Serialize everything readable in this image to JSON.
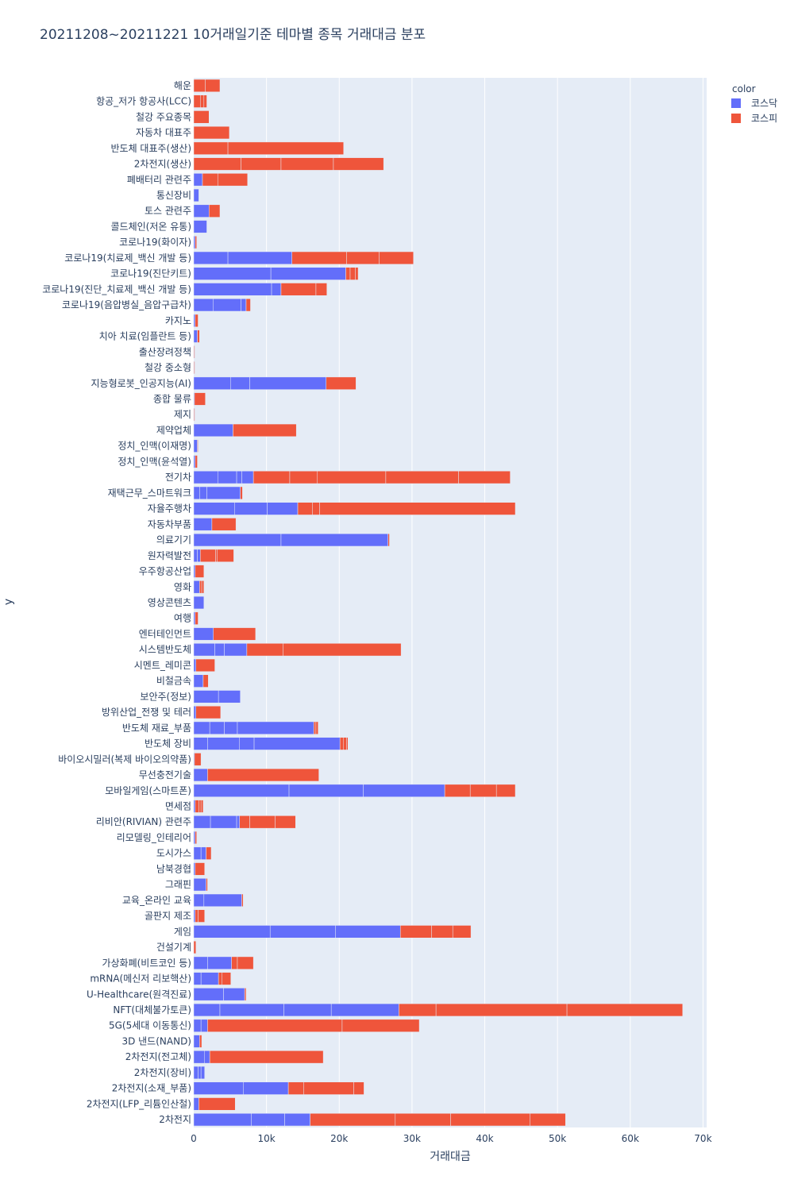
{
  "chart_data": {
    "type": "bar",
    "orientation": "horizontal",
    "barmode": "stack",
    "title": "20211208~20211221 10거래일기준 테마별 종목 거래대금 분포",
    "xlabel": "거래대금",
    "ylabel": "y",
    "xlim": [
      0,
      70500
    ],
    "xticks": [
      0,
      10000,
      20000,
      30000,
      40000,
      50000,
      60000,
      70000
    ],
    "xtick_labels": [
      "0",
      "10k",
      "20k",
      "30k",
      "40k",
      "50k",
      "60k",
      "70k"
    ],
    "grid": true,
    "legend": {
      "title": "color",
      "position": "top-right"
    },
    "categories": [
      "해운",
      "항공_저가 항공사(LCC)",
      "철강 주요종목",
      "자동차 대표주",
      "반도체 대표주(생산)",
      "2차전지(생산)",
      "폐배터리 관련주",
      "통신장비",
      "토스 관련주",
      "콜드체인(저온 유통)",
      "코로나19(화이자)",
      "코로나19(치료제_백신 개발 등)",
      "코로나19(진단키트)",
      "코로나19(진단_치료제_백신 개발 등)",
      "코로나19(음압병실_음압구급차)",
      "카지노",
      "치아 치료(임플란트 등)",
      "출산장려정책",
      "철강 중소형",
      "지능형로봇_인공지능(AI)",
      "종합 물류",
      "제지",
      "제약업체",
      "정치_인맥(이재명)",
      "정치_인맥(윤석열)",
      "전기차",
      "재택근무_스마트워크",
      "자율주행차",
      "자동차부품",
      "의료기기",
      "원자력발전",
      "우주항공산업",
      "영화",
      "영상콘텐츠",
      "여행",
      "엔터테인먼트",
      "시스템반도체",
      "시멘트_레미콘",
      "비철금속",
      "보안주(정보)",
      "방위산업_전쟁 및 테러",
      "반도체 재료_부품",
      "반도체 장비",
      "바이오시밀러(복제 바이오의약품)",
      "무선충전기술",
      "모바일게임(스마트폰)",
      "면세점",
      "리비안(RIVIAN) 관련주",
      "리모델링_인테리어",
      "도시가스",
      "남북경협",
      "그래핀",
      "교육_온라인 교육",
      "골판지 제조",
      "게임",
      "건설기계",
      "가상화폐(비트코인 등)",
      "mRNA(메신저 리보핵산)",
      "U-Healthcare(원격진료)",
      "NFT(대체불가토큰)",
      "5G(5세대 이동통신)",
      "3D 낸드(NAND)",
      "2차전지(전고체)",
      "2차전지(장비)",
      "2차전지(소재_부품)",
      "2차전지(LFP_리튬인산철)",
      "2차전지"
    ],
    "series": [
      {
        "name": "코스닥",
        "color": "#636efa",
        "values": [
          0,
          0,
          0,
          0,
          0,
          0,
          1200,
          700,
          2100,
          1800,
          200,
          13500,
          20900,
          12000,
          7200,
          200,
          500,
          50,
          50,
          18200,
          100,
          50,
          5400,
          500,
          200,
          8200,
          6400,
          14300,
          2500,
          26700,
          900,
          200,
          800,
          1400,
          200,
          2700,
          7300,
          300,
          1300,
          6400,
          300,
          16500,
          20100,
          100,
          1900,
          34500,
          200,
          6300,
          200,
          1700,
          200,
          1700,
          6600,
          200,
          28400,
          0,
          5200,
          3400,
          7000,
          28200,
          1900,
          800,
          2200,
          1500,
          13000,
          700,
          16000
        ],
        "segments": [
          [],
          [],
          [],
          [],
          [],
          [],
          [
            1200
          ],
          [
            700
          ],
          [
            2100
          ],
          [
            1800
          ],
          [
            200
          ],
          [
            4700,
            8800
          ],
          [
            10600,
            10300
          ],
          [
            10700,
            1300
          ],
          [
            2700,
            3800,
            700
          ],
          [
            200
          ],
          [
            500
          ],
          [
            50
          ],
          [
            50
          ],
          [
            5100,
            2600,
            10500
          ],
          [
            100
          ],
          [
            50
          ],
          [
            5400
          ],
          [
            500
          ],
          [
            200
          ],
          [
            3300,
            2600,
            700,
            1600
          ],
          [
            800,
            1000,
            4600
          ],
          [
            5600,
            4500,
            4200
          ],
          [
            2500
          ],
          [
            12000,
            14700
          ],
          [
            500,
            400
          ],
          [
            200
          ],
          [
            800
          ],
          [
            1400
          ],
          [
            200
          ],
          [
            2700
          ],
          [
            2900,
            1300,
            3100
          ],
          [
            300
          ],
          [
            1300
          ],
          [
            3400,
            3000
          ],
          [
            300
          ],
          [
            2200,
            2000,
            1800,
            10500
          ],
          [
            1900,
            4400,
            2000,
            11800
          ],
          [
            100
          ],
          [
            1900
          ],
          [
            13100,
            10200,
            11200
          ],
          [
            200
          ],
          [
            2300,
            3600,
            400
          ],
          [
            200
          ],
          [
            1000,
            700
          ],
          [
            200
          ],
          [
            1700
          ],
          [
            1400,
            5200
          ],
          [
            200
          ],
          [
            10500,
            9000,
            8900
          ],
          [
            0
          ],
          [
            1900,
            3300
          ],
          [
            1000,
            2400
          ],
          [
            4100,
            2900
          ],
          [
            3600,
            8800,
            6500,
            9300
          ],
          [
            1000,
            900
          ],
          [
            800
          ],
          [
            1500,
            700
          ],
          [
            600,
            400,
            500
          ],
          [
            6800,
            6200
          ],
          [
            700
          ],
          [
            7900,
            4600,
            3500
          ]
        ]
      },
      {
        "name": "코스피",
        "color": "#ef553b",
        "values": [
          3600,
          1800,
          2100,
          4900,
          20600,
          26100,
          6200,
          0,
          1500,
          0,
          200,
          16700,
          1700,
          6300,
          600,
          400,
          300,
          100,
          100,
          4100,
          1500,
          100,
          8700,
          100,
          300,
          35300,
          300,
          29900,
          3300,
          200,
          4600,
          1200,
          600,
          0,
          400,
          5800,
          21200,
          2600,
          700,
          0,
          3400,
          600,
          1100,
          900,
          15300,
          9700,
          1100,
          7700,
          200,
          700,
          1300,
          200,
          200,
          1300,
          9700,
          300,
          3000,
          1700,
          200,
          39000,
          29100,
          300,
          15600,
          0,
          10400,
          5000,
          35100
        ],
        "segments": [
          [
            1600,
            2000
          ],
          [
            900,
            500,
            400
          ],
          [
            2100
          ],
          [
            4900
          ],
          [
            4700,
            15900
          ],
          [
            6500,
            5500,
            7200,
            6900
          ],
          [
            2100,
            4100
          ],
          [],
          [
            1500
          ],
          [],
          [
            200
          ],
          [
            7500,
            4500,
            4700
          ],
          [
            600,
            700,
            400
          ],
          [
            4800,
            1500
          ],
          [
            600
          ],
          [
            400
          ],
          [
            300
          ],
          [
            100
          ],
          [
            100
          ],
          [
            4100
          ],
          [
            1500
          ],
          [
            100
          ],
          [
            8700
          ],
          [
            100
          ],
          [
            300
          ],
          [
            5000,
            3800,
            9400,
            10000,
            7100
          ],
          [
            300
          ],
          [
            2000,
            1000,
            26900
          ],
          [
            3300
          ],
          [
            200
          ],
          [
            2100,
            200,
            2300
          ],
          [
            1200
          ],
          [
            300,
            300
          ],
          [],
          [
            400
          ],
          [
            5800
          ],
          [
            5000,
            16200
          ],
          [
            2600
          ],
          [
            700
          ],
          [],
          [
            3400
          ],
          [
            300,
            300
          ],
          [
            500,
            400,
            200
          ],
          [
            900
          ],
          [
            15300
          ],
          [
            3500,
            3600,
            2600
          ],
          [
            500,
            300,
            300
          ],
          [
            1400,
            3500,
            2800
          ],
          [
            200
          ],
          [
            700
          ],
          [
            1300
          ],
          [
            200
          ],
          [
            200
          ],
          [
            400,
            900
          ],
          [
            4300,
            2900,
            2500
          ],
          [
            300
          ],
          [
            800,
            2200
          ],
          [
            500,
            1200
          ],
          [
            200
          ],
          [
            5100,
            18000,
            15900
          ],
          [
            18500,
            10600
          ],
          [
            300
          ],
          [
            15600
          ],
          [],
          [
            2100,
            6900,
            1400
          ],
          [
            5000
          ],
          [
            11700,
            7600,
            10900,
            4900
          ]
        ]
      }
    ]
  }
}
